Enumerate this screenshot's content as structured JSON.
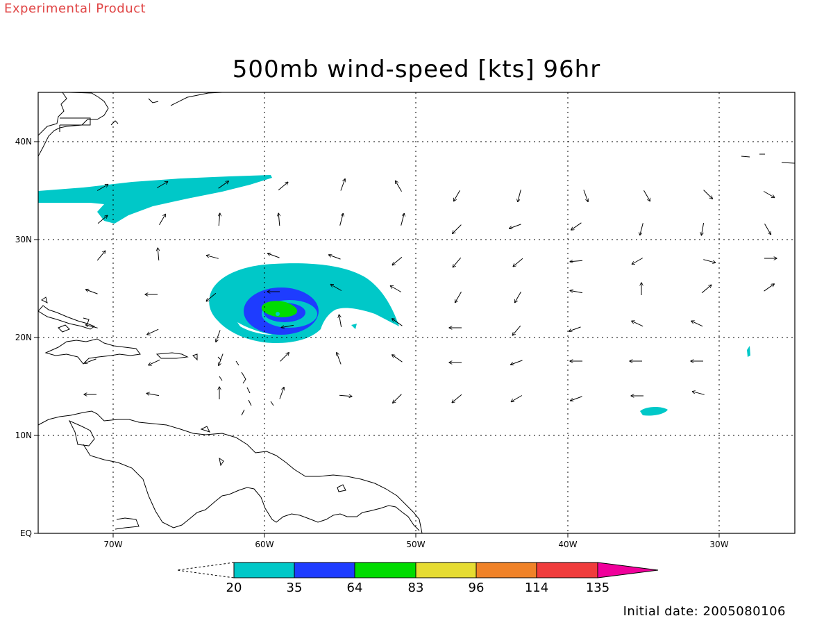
{
  "header": {
    "experimental": "Experimental Product",
    "title": "500mb wind-speed [kts] 96hr"
  },
  "footer": {
    "initial_date": "Initial date: 2005080106"
  },
  "map": {
    "lon_labels": [
      "70W",
      "60W",
      "50W",
      "40W",
      "30W"
    ],
    "lat_labels": [
      "EQ",
      "10N",
      "20N",
      "30N",
      "40N"
    ],
    "lon_range": [
      -75,
      -25
    ],
    "lat_range": [
      0,
      45
    ],
    "grid": "dotted",
    "coastline_color": "#000000"
  },
  "colorbar": {
    "labels": [
      "20",
      "35",
      "64",
      "83",
      "96",
      "114",
      "135"
    ],
    "colors": [
      "#00c8c8",
      "#1e3cff",
      "#00dc00",
      "#e6dc32",
      "#f08228",
      "#f03c3c",
      "#f0009b"
    ],
    "units": "kts"
  },
  "colors": {
    "c20": "#00c8c8",
    "c35": "#1e3cff",
    "c64": "#00dc00",
    "accent_red": "#e04545"
  }
}
